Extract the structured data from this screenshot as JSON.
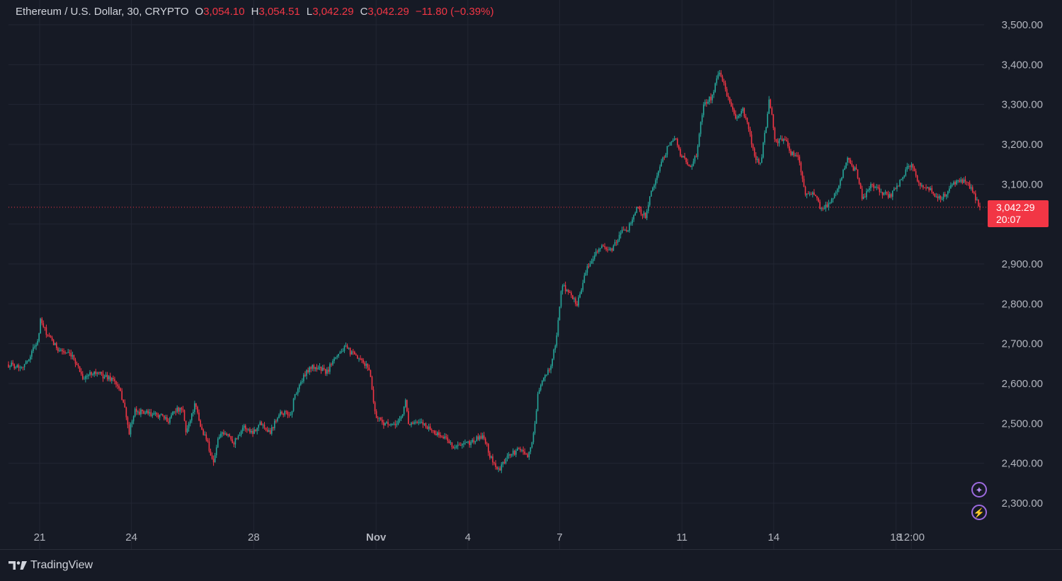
{
  "header": {
    "symbol": "Ethereum / U.S. Dollar, 30, CRYPTO",
    "open_label": "O",
    "open_value": "3,054.10",
    "high_label": "H",
    "high_value": "3,054.51",
    "low_label": "L",
    "low_value": "3,042.29",
    "close_label": "C",
    "close_value": "3,042.29",
    "change": "−11.80 (−0.39%)"
  },
  "price_tag": {
    "price": "3,042.29",
    "countdown": "20:07"
  },
  "footer": {
    "brand": "TradingView"
  },
  "buttons": [
    {
      "name": "assistant-sparkle-button",
      "icon": "sparkle-icon",
      "glyph": "✦"
    },
    {
      "name": "flash-button",
      "icon": "lightning-icon",
      "glyph": "⚡"
    }
  ],
  "colors": {
    "background": "#161a25",
    "grid": "#222633",
    "up": "#26a69a",
    "down": "#f23645",
    "text": "#d1d4dc",
    "axis_text": "#b2b5be",
    "price_tag": "#f23645",
    "accent_purple": "#9c6ade"
  },
  "chart_data": {
    "type": "candlestick",
    "y_ticks": [
      {
        "value": 3500,
        "label": "3,500.00"
      },
      {
        "value": 3400,
        "label": "3,400.00"
      },
      {
        "value": 3300,
        "label": "3,300.00"
      },
      {
        "value": 3200,
        "label": "3,200.00"
      },
      {
        "value": 3100,
        "label": "3,100.00"
      },
      {
        "value": 2900,
        "label": "2,900.00"
      },
      {
        "value": 2800,
        "label": "2,800.00"
      },
      {
        "value": 2700,
        "label": "2,700.00"
      },
      {
        "value": 2600,
        "label": "2,600.00"
      },
      {
        "value": 2500,
        "label": "2,500.00"
      },
      {
        "value": 2400,
        "label": "2,400.00"
      },
      {
        "value": 2300,
        "label": "2,300.00"
      }
    ],
    "x_ticks": [
      {
        "label": "21",
        "day": 0,
        "bold": false
      },
      {
        "label": "24",
        "day": 3,
        "bold": false
      },
      {
        "label": "28",
        "day": 7,
        "bold": false
      },
      {
        "label": "Nov",
        "day": 11,
        "bold": true
      },
      {
        "label": "4",
        "day": 14,
        "bold": false
      },
      {
        "label": "7",
        "day": 17,
        "bold": false
      },
      {
        "label": "11",
        "day": 21,
        "bold": false
      },
      {
        "label": "14",
        "day": 24,
        "bold": false
      },
      {
        "label": "18",
        "day": 28,
        "bold": false
      },
      {
        "label": "12:00",
        "day": 28.5,
        "bold": false
      }
    ],
    "x_range_days": [
      -1,
      29.5
    ],
    "y_range": [
      2240,
      3540
    ],
    "last_price": 3042.29,
    "price_path": [
      [
        -1.0,
        2648
      ],
      [
        -0.6,
        2643
      ],
      [
        -0.4,
        2652
      ],
      [
        -0.1,
        2700
      ],
      [
        0.0,
        2710
      ],
      [
        0.05,
        2760
      ],
      [
        0.3,
        2720
      ],
      [
        0.6,
        2690
      ],
      [
        1.0,
        2672
      ],
      [
        1.2,
        2660
      ],
      [
        1.5,
        2612
      ],
      [
        1.8,
        2630
      ],
      [
        2.2,
        2618
      ],
      [
        2.5,
        2610
      ],
      [
        2.7,
        2580
      ],
      [
        2.85,
        2548
      ],
      [
        3.0,
        2475
      ],
      [
        3.2,
        2530
      ],
      [
        3.5,
        2528
      ],
      [
        3.8,
        2520
      ],
      [
        4.0,
        2522
      ],
      [
        4.3,
        2505
      ],
      [
        4.5,
        2535
      ],
      [
        4.8,
        2532
      ],
      [
        4.9,
        2478
      ],
      [
        5.2,
        2548
      ],
      [
        5.4,
        2488
      ],
      [
        5.6,
        2458
      ],
      [
        5.8,
        2400
      ],
      [
        6.0,
        2470
      ],
      [
        6.3,
        2472
      ],
      [
        6.5,
        2452
      ],
      [
        6.8,
        2492
      ],
      [
        7.1,
        2478
      ],
      [
        7.4,
        2502
      ],
      [
        7.7,
        2478
      ],
      [
        8.0,
        2528
      ],
      [
        8.4,
        2522
      ],
      [
        8.5,
        2568
      ],
      [
        8.7,
        2600
      ],
      [
        9.0,
        2640
      ],
      [
        9.3,
        2640
      ],
      [
        9.6,
        2628
      ],
      [
        9.8,
        2665
      ],
      [
        10.2,
        2690
      ],
      [
        10.5,
        2670
      ],
      [
        11.0,
        2638
      ],
      [
        11.2,
        2520
      ],
      [
        11.5,
        2500
      ],
      [
        11.8,
        2492
      ],
      [
        12.1,
        2520
      ],
      [
        12.2,
        2560
      ],
      [
        12.3,
        2500
      ],
      [
        12.8,
        2500
      ],
      [
        13.2,
        2475
      ],
      [
        13.6,
        2460
      ],
      [
        13.8,
        2440
      ],
      [
        14.3,
        2450
      ],
      [
        14.8,
        2470
      ],
      [
        15.0,
        2420
      ],
      [
        15.3,
        2380
      ],
      [
        15.6,
        2418
      ],
      [
        16.0,
        2435
      ],
      [
        16.3,
        2420
      ],
      [
        16.5,
        2490
      ],
      [
        16.6,
        2580
      ],
      [
        17.0,
        2640
      ],
      [
        17.2,
        2700
      ],
      [
        17.4,
        2850
      ],
      [
        17.6,
        2830
      ],
      [
        17.9,
        2800
      ],
      [
        18.2,
        2880
      ],
      [
        18.5,
        2930
      ],
      [
        18.8,
        2945
      ],
      [
        19.0,
        2930
      ],
      [
        19.4,
        2980
      ],
      [
        19.6,
        2990
      ],
      [
        19.9,
        3040
      ],
      [
        20.2,
        3020
      ],
      [
        20.4,
        3090
      ],
      [
        20.6,
        3130
      ],
      [
        20.9,
        3190
      ],
      [
        21.2,
        3220
      ],
      [
        21.3,
        3180
      ],
      [
        21.5,
        3160
      ],
      [
        21.7,
        3140
      ],
      [
        21.9,
        3180
      ],
      [
        22.1,
        3300
      ],
      [
        22.4,
        3320
      ],
      [
        22.6,
        3380
      ],
      [
        22.8,
        3350
      ],
      [
        23.0,
        3300
      ],
      [
        23.2,
        3260
      ],
      [
        23.4,
        3290
      ],
      [
        23.6,
        3240
      ],
      [
        23.8,
        3170
      ],
      [
        24.0,
        3150
      ],
      [
        24.2,
        3250
      ],
      [
        24.3,
        3320
      ],
      [
        24.5,
        3200
      ],
      [
        24.8,
        3220
      ],
      [
        25.0,
        3180
      ],
      [
        25.3,
        3160
      ],
      [
        25.5,
        3070
      ],
      [
        25.8,
        3080
      ],
      [
        26.0,
        3040
      ],
      [
        26.3,
        3050
      ],
      [
        26.6,
        3100
      ],
      [
        26.9,
        3160
      ],
      [
        27.2,
        3130
      ],
      [
        27.4,
        3060
      ],
      [
        27.7,
        3100
      ],
      [
        28.0,
        3080
      ],
      [
        28.3,
        3070
      ],
      [
        28.6,
        3100
      ],
      [
        28.8,
        3130
      ],
      [
        29.0,
        3150
      ],
      [
        29.3,
        3100
      ],
      [
        29.6,
        3090
      ],
      [
        30.0,
        3060
      ],
      [
        30.4,
        3100
      ],
      [
        30.8,
        3110
      ],
      [
        31.0,
        3088
      ],
      [
        31.3,
        3042
      ]
    ],
    "x_domain_plot": [
      -1.0,
      31.3
    ],
    "legend": "none",
    "grid": true
  }
}
